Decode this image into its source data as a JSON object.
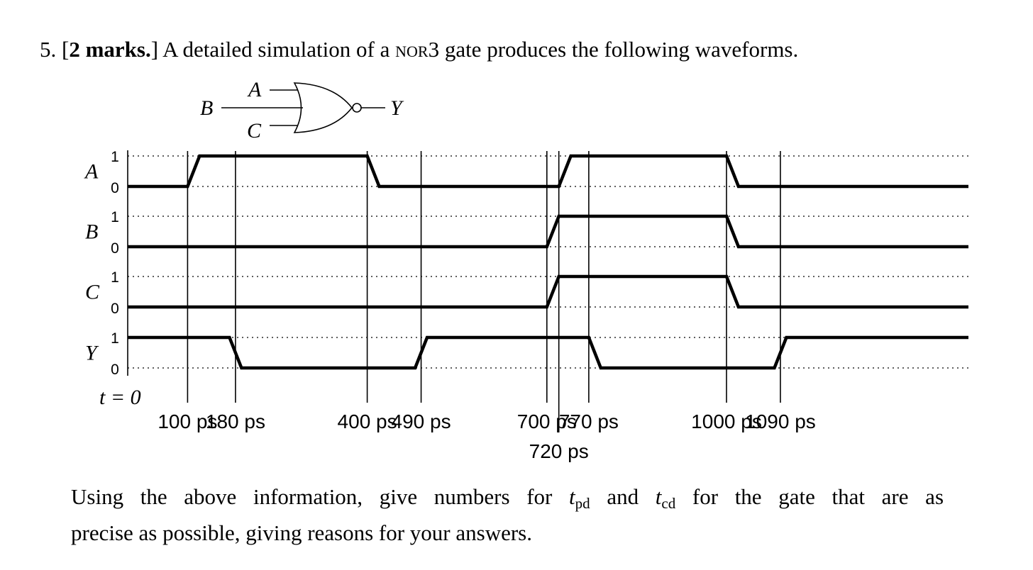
{
  "question": {
    "number": "5.",
    "marks_open": "[",
    "marks": "2 marks.",
    "marks_close": "]",
    "text_before": "A detailed simulation of a",
    "gate_name": "nor",
    "gate_count": "3",
    "text_after": "gate produces the following waveforms."
  },
  "gate": {
    "inputs": [
      "A",
      "B",
      "C"
    ],
    "output": "Y"
  },
  "signals": [
    {
      "name": "A",
      "high_label": "1",
      "low_label": "0",
      "transitions": [
        {
          "start": 100,
          "end": 120,
          "to": 1
        },
        {
          "start": 400,
          "end": 420,
          "to": 0
        },
        {
          "start": 720,
          "end": 740,
          "to": 1
        },
        {
          "start": 1000,
          "end": 1020,
          "to": 0
        }
      ],
      "initial": 0
    },
    {
      "name": "B",
      "high_label": "1",
      "low_label": "0",
      "transitions": [
        {
          "start": 700,
          "end": 720,
          "to": 1
        },
        {
          "start": 1000,
          "end": 1020,
          "to": 0
        }
      ],
      "initial": 0
    },
    {
      "name": "C",
      "high_label": "1",
      "low_label": "0",
      "transitions": [
        {
          "start": 700,
          "end": 720,
          "to": 1
        },
        {
          "start": 1000,
          "end": 1020,
          "to": 0
        }
      ],
      "initial": 0
    },
    {
      "name": "Y",
      "high_label": "1",
      "low_label": "0",
      "transitions": [
        {
          "start": 170,
          "end": 190,
          "to": 0
        },
        {
          "start": 480,
          "end": 500,
          "to": 1
        },
        {
          "start": 770,
          "end": 790,
          "to": 0
        },
        {
          "start": 1080,
          "end": 1100,
          "to": 1
        }
      ],
      "initial": 1
    }
  ],
  "time_axis": {
    "origin_label": "t = 0",
    "markers": [
      {
        "time": 100,
        "label": "100 ps"
      },
      {
        "time": 180,
        "label": "180 ps"
      },
      {
        "time": 400,
        "label": "400 ps"
      },
      {
        "time": 490,
        "label": "490 ps"
      },
      {
        "time": 700,
        "label": "700 ps"
      },
      {
        "time": 720,
        "label": "720 ps"
      },
      {
        "time": 770,
        "label": "770 ps"
      },
      {
        "time": 1000,
        "label": "1000 ps"
      },
      {
        "time": 1090,
        "label": "1090 ps"
      }
    ]
  },
  "prompt": {
    "p1": "Using the above information, give numbers for",
    "tpd_var": "t",
    "tpd_sub": "pd",
    "and": "and",
    "tcd_var": "t",
    "tcd_sub": "cd",
    "p2": "for the gate that are as",
    "p3": "precise as possible, giving reasons for your answers."
  }
}
